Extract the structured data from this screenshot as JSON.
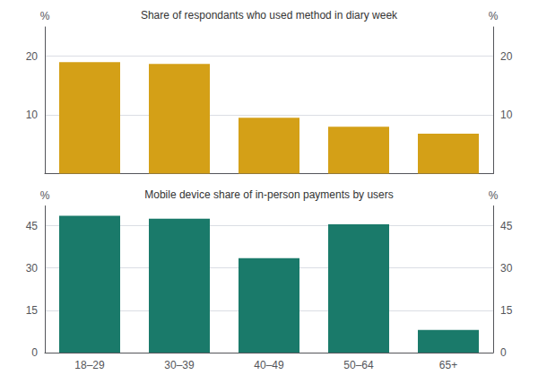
{
  "chart_data": [
    {
      "type": "bar",
      "title": "Share of respondants who used method in diary week",
      "ylabel": "%",
      "categories": [
        "18–29",
        "30–39",
        "40–49",
        "50–64",
        "65+"
      ],
      "values": [
        19.0,
        18.7,
        9.5,
        8.0,
        6.8
      ],
      "color": "#D4A017",
      "ylim": [
        0,
        25
      ],
      "yticks": [
        10,
        20
      ],
      "grid": true,
      "tick_labels": "y"
    },
    {
      "type": "bar",
      "title": "Mobile device share of in-person payments by users",
      "ylabel": "%",
      "categories": [
        "18–29",
        "30–39",
        "40–49",
        "50–64",
        "65+"
      ],
      "values": [
        48.5,
        47.5,
        33.5,
        45.5,
        8.0
      ],
      "color": "#1A7A6A",
      "ylim": [
        0,
        52
      ],
      "yticks": [
        0,
        15,
        30,
        45
      ],
      "grid": true
    }
  ]
}
